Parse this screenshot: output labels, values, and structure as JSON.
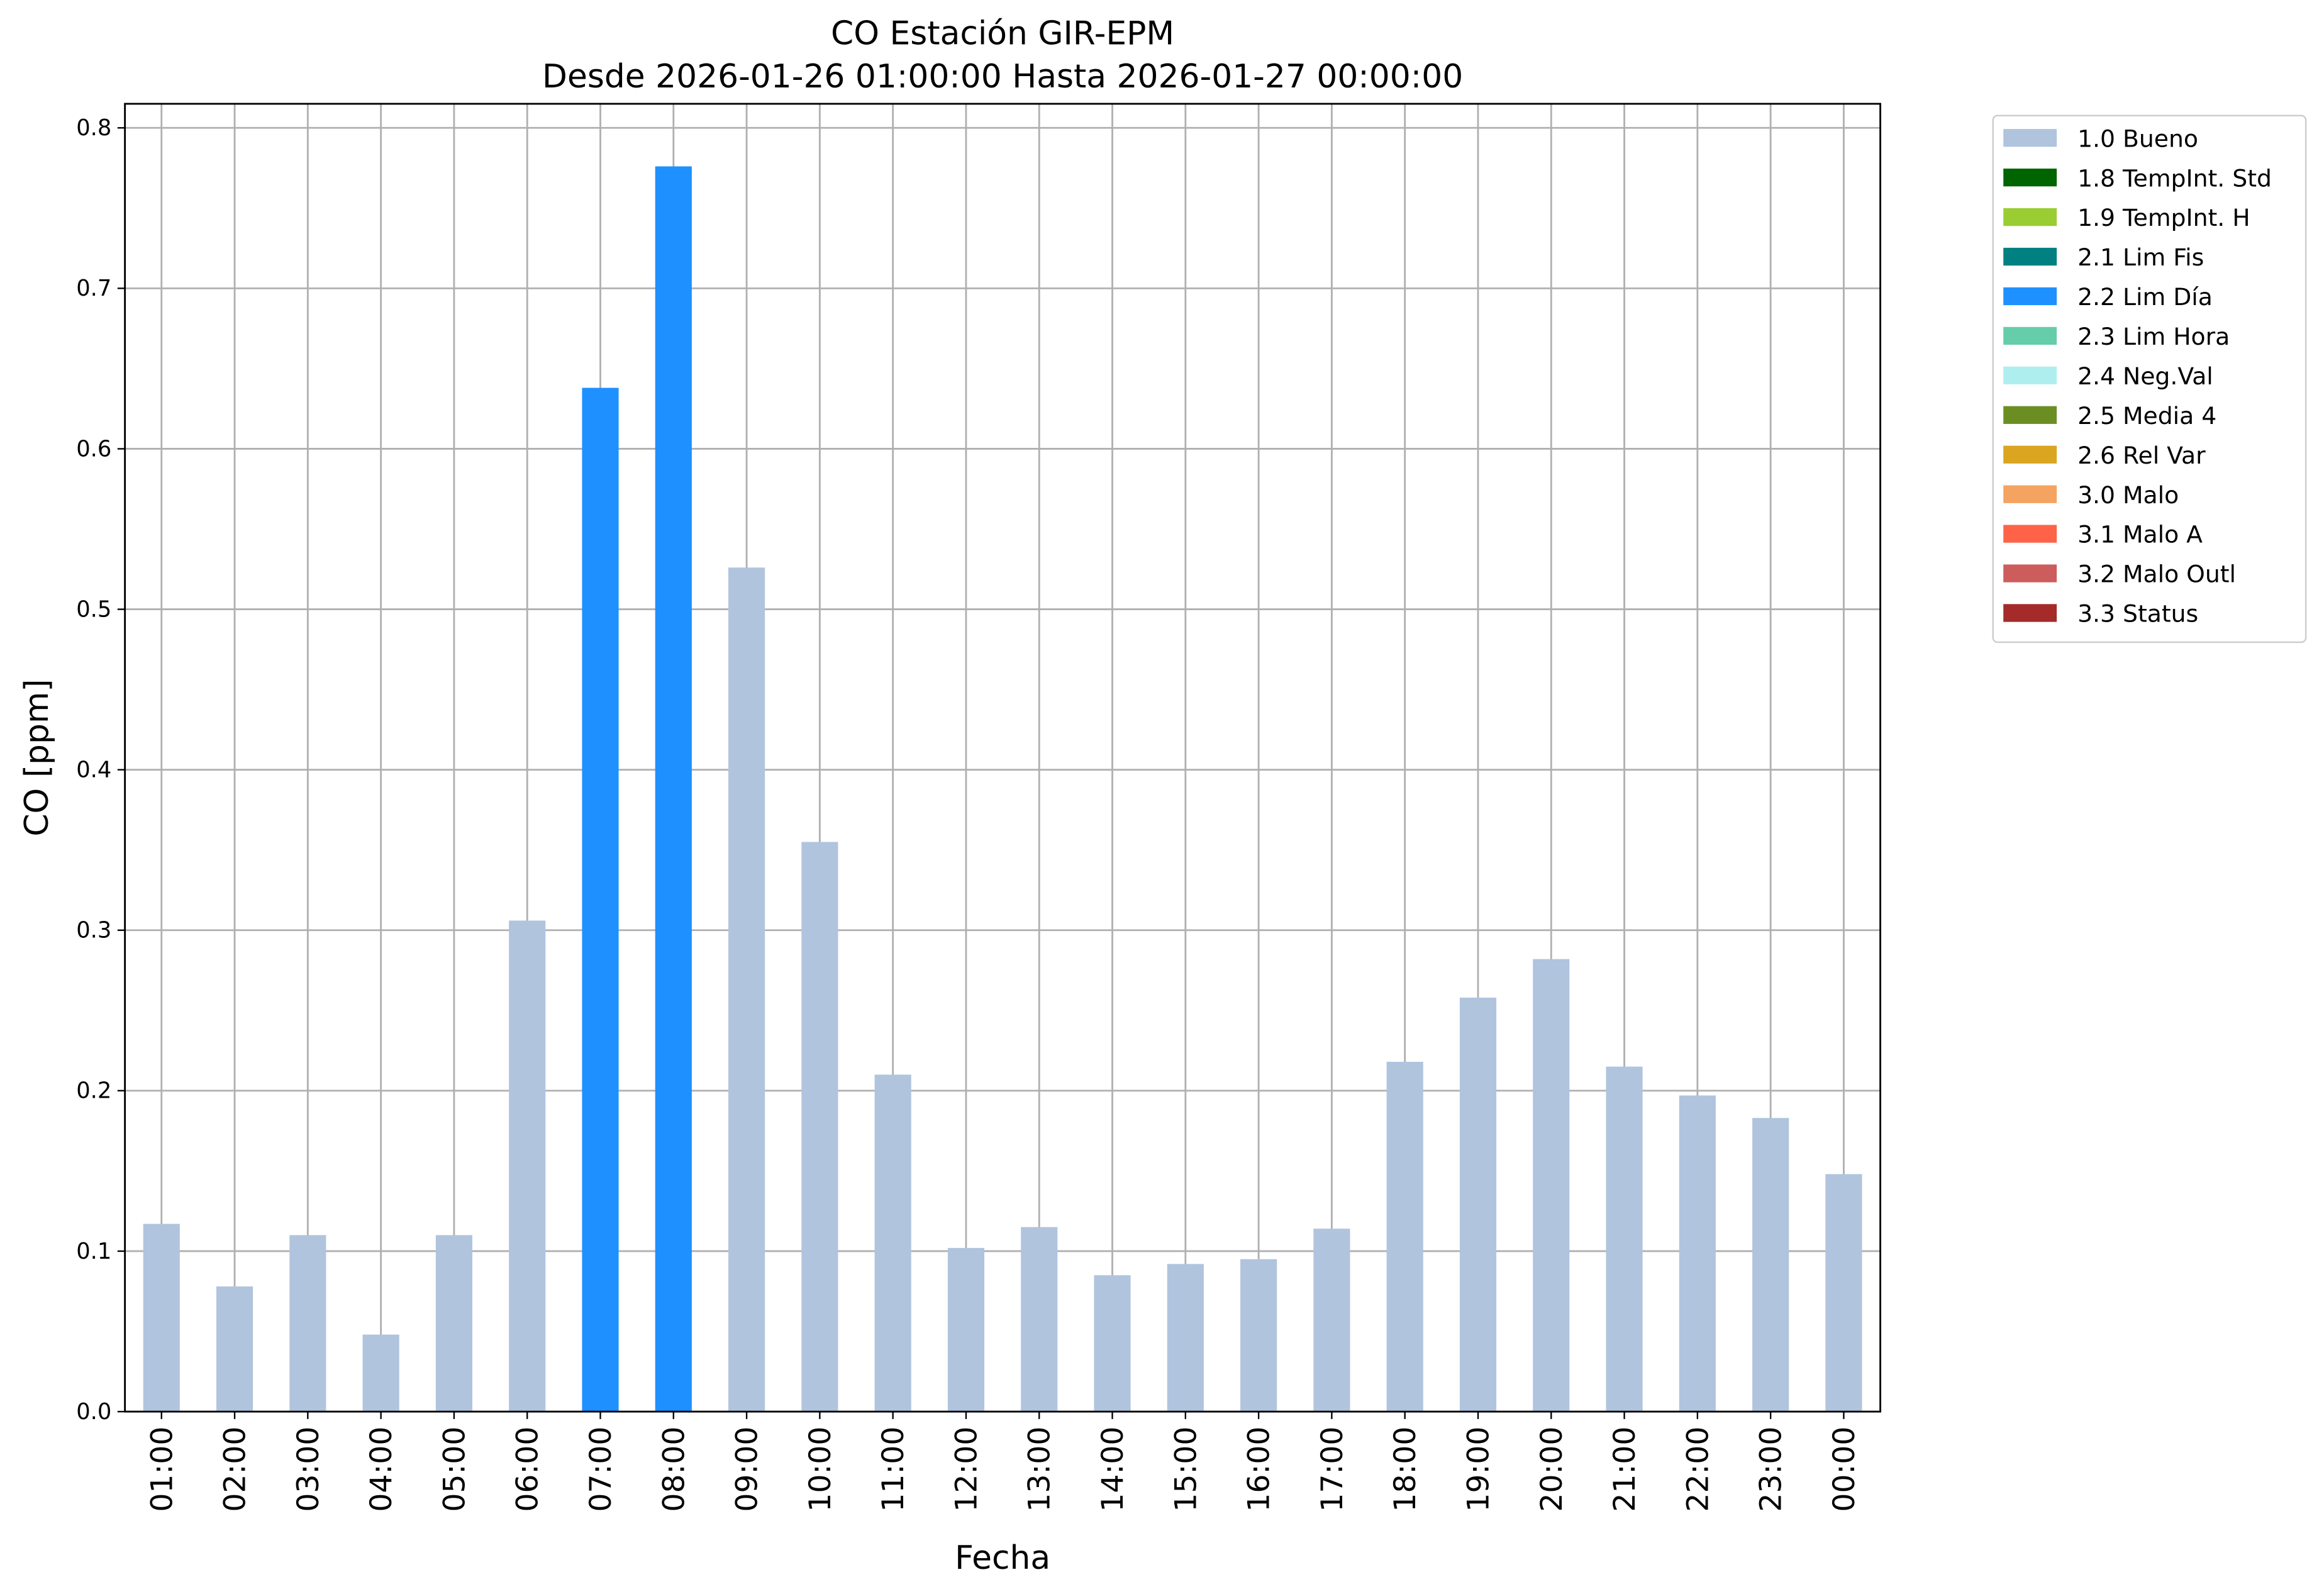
{
  "chart_data": {
    "type": "bar",
    "stacked": true,
    "title": "CO Estación GIR-EPM",
    "subtitle": "Desde 2026-01-26 01:00:00 Hasta 2026-01-27 00:00:00",
    "x_label": "Fecha",
    "y_label": "CO [ppm]",
    "categories": [
      "01:00",
      "02:00",
      "03:00",
      "04:00",
      "05:00",
      "06:00",
      "07:00",
      "08:00",
      "09:00",
      "10:00",
      "11:00",
      "12:00",
      "13:00",
      "14:00",
      "15:00",
      "16:00",
      "17:00",
      "18:00",
      "19:00",
      "20:00",
      "21:00",
      "22:00",
      "23:00",
      "00:00"
    ],
    "series": [
      {
        "name": "1.0 Bueno",
        "color": "#b0c4de",
        "values": [
          0.117,
          0.078,
          0.11,
          0.048,
          0.11,
          0.306,
          null,
          null,
          0.526,
          0.355,
          0.21,
          0.102,
          0.115,
          0.085,
          0.092,
          0.095,
          0.114,
          0.218,
          0.258,
          0.282,
          0.215,
          0.197,
          0.183,
          0.148
        ]
      },
      {
        "name": "1.8 TempInt. Std",
        "color": "#006400",
        "values": [
          null,
          null,
          null,
          null,
          null,
          null,
          null,
          null,
          null,
          null,
          null,
          null,
          null,
          null,
          null,
          null,
          null,
          null,
          null,
          null,
          null,
          null,
          null,
          null
        ]
      },
      {
        "name": "1.9 TempInt. H",
        "color": "#9acd32",
        "values": [
          null,
          null,
          null,
          null,
          null,
          null,
          null,
          null,
          null,
          null,
          null,
          null,
          null,
          null,
          null,
          null,
          null,
          null,
          null,
          null,
          null,
          null,
          null,
          null
        ]
      },
      {
        "name": "2.1 Lim Fis",
        "color": "#008080",
        "values": [
          null,
          null,
          null,
          null,
          null,
          null,
          null,
          null,
          null,
          null,
          null,
          null,
          null,
          null,
          null,
          null,
          null,
          null,
          null,
          null,
          null,
          null,
          null,
          null
        ]
      },
      {
        "name": "2.2 Lim Día",
        "color": "#1e90ff",
        "values": [
          null,
          null,
          null,
          null,
          null,
          null,
          0.638,
          0.776,
          null,
          null,
          null,
          null,
          null,
          null,
          null,
          null,
          null,
          null,
          null,
          null,
          null,
          null,
          null,
          null
        ]
      },
      {
        "name": "2.3 Lim Hora",
        "color": "#66cdaa",
        "values": [
          null,
          null,
          null,
          null,
          null,
          null,
          null,
          null,
          null,
          null,
          null,
          null,
          null,
          null,
          null,
          null,
          null,
          null,
          null,
          null,
          null,
          null,
          null,
          null
        ]
      },
      {
        "name": "2.4 Neg.Val",
        "color": "#afeeee",
        "values": [
          null,
          null,
          null,
          null,
          null,
          null,
          null,
          null,
          null,
          null,
          null,
          null,
          null,
          null,
          null,
          null,
          null,
          null,
          null,
          null,
          null,
          null,
          null,
          null
        ]
      },
      {
        "name": "2.5 Media 4",
        "color": "#6b8e23",
        "values": [
          null,
          null,
          null,
          null,
          null,
          null,
          null,
          null,
          null,
          null,
          null,
          null,
          null,
          null,
          null,
          null,
          null,
          null,
          null,
          null,
          null,
          null,
          null,
          null
        ]
      },
      {
        "name": "2.6 Rel Var",
        "color": "#daa520",
        "values": [
          null,
          null,
          null,
          null,
          null,
          null,
          null,
          null,
          null,
          null,
          null,
          null,
          null,
          null,
          null,
          null,
          null,
          null,
          null,
          null,
          null,
          null,
          null,
          null
        ]
      },
      {
        "name": "3.0 Malo",
        "color": "#f4a460",
        "values": [
          null,
          null,
          null,
          null,
          null,
          null,
          null,
          null,
          null,
          null,
          null,
          null,
          null,
          null,
          null,
          null,
          null,
          null,
          null,
          null,
          null,
          null,
          null,
          null
        ]
      },
      {
        "name": "3.1 Malo A",
        "color": "#ff6347",
        "values": [
          null,
          null,
          null,
          null,
          null,
          null,
          null,
          null,
          null,
          null,
          null,
          null,
          null,
          null,
          null,
          null,
          null,
          null,
          null,
          null,
          null,
          null,
          null,
          null
        ]
      },
      {
        "name": "3.2 Malo Outl",
        "color": "#cd5c5c",
        "values": [
          null,
          null,
          null,
          null,
          null,
          null,
          null,
          null,
          null,
          null,
          null,
          null,
          null,
          null,
          null,
          null,
          null,
          null,
          null,
          null,
          null,
          null,
          null,
          null
        ]
      },
      {
        "name": "3.3 Status",
        "color": "#a52a2a",
        "values": [
          null,
          null,
          null,
          null,
          null,
          null,
          null,
          null,
          null,
          null,
          null,
          null,
          null,
          null,
          null,
          null,
          null,
          null,
          null,
          null,
          null,
          null,
          null,
          null
        ]
      }
    ],
    "ylim": [
      0,
      0.815
    ],
    "yticks": [
      {
        "value": 0,
        "label": "0.0"
      },
      0.1,
      0.2,
      0.3,
      0.4,
      0.5,
      0.6,
      0.7,
      0.8
    ],
    "grid": true,
    "legend": "outside right"
  }
}
